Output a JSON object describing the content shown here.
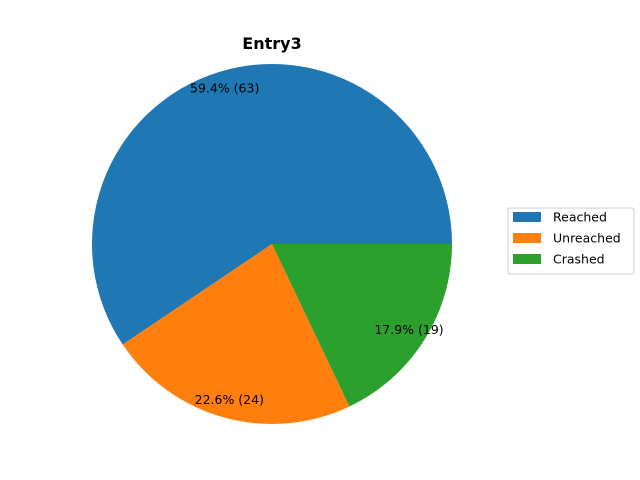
{
  "chart_data": {
    "type": "pie",
    "title": "Entry3",
    "categories": [
      "Reached",
      "Unreached",
      "Crashed"
    ],
    "values": [
      63,
      24,
      19
    ],
    "percent_labels": [
      "59.4%  (63)",
      "22.6%  (24)",
      "17.9%  (19)"
    ],
    "colors": [
      "#1f77b4",
      "#ff7f0e",
      "#2ca02c"
    ],
    "start_angle_deg": 0,
    "direction": "counterclockwise",
    "legend_position": "right"
  }
}
